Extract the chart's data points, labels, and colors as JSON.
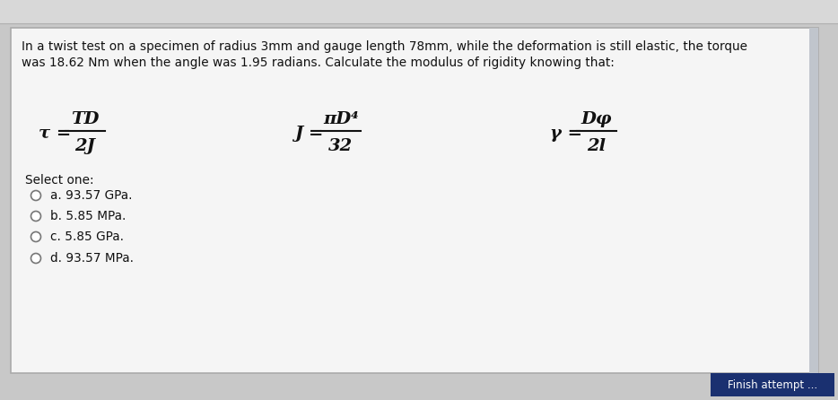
{
  "bg_outer": "#c8c8c8",
  "bg_top_bar": "#e0e0e0",
  "card_color": "#f0f0f0",
  "card_inner_color": "#f5f5f5",
  "question_text_line1": "In a twist test on a specimen of radius 3mm and gauge length 78mm, while the deformation is still elastic, the torque",
  "question_text_line2": "was 18.62 Nm when the angle was 1.95 radians. Calculate the modulus of rigidity knowing that:",
  "formula1_top": "TD",
  "formula1_bottom": "2J",
  "formula1_prefix": "τ = ",
  "formula2_top": "πD⁴",
  "formula2_bottom": "32",
  "formula2_prefix": "J = ",
  "formula3_top": "Dφ",
  "formula3_bottom": "2l",
  "formula3_prefix": "γ = ",
  "select_one_text": "Select one:",
  "options": [
    "a. 93.57 GPa.",
    "b. 5.85 MPa.",
    "c. 5.85 GPa.",
    "d. 93.57 MPa."
  ],
  "finish_btn_text": "Finish attempt ...",
  "finish_btn_color": "#1a3070",
  "finish_btn_text_color": "#ffffff",
  "text_color": "#111111",
  "question_fontsize": 9.8,
  "formula_fontsize": 14,
  "option_fontsize": 9.8,
  "card_edge_color": "#aaaaaa",
  "radio_edge_color": "#777777"
}
